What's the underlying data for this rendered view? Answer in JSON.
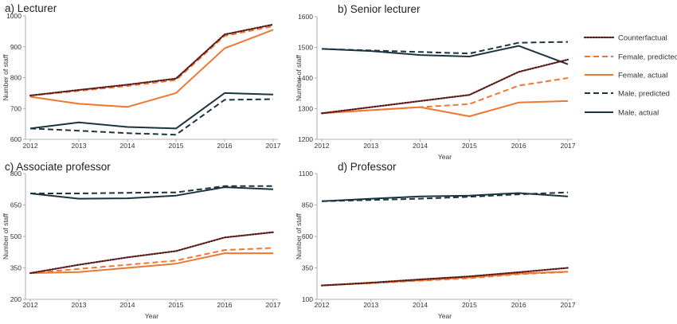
{
  "colors": {
    "counterfactual": "#5a1a1a",
    "female": "#ee7733",
    "male": "#1c3440"
  },
  "legend": [
    {
      "key": "counterfactual",
      "label": "Counterfactual",
      "style": "dotted"
    },
    {
      "key": "female_predicted",
      "label": "Female, predicted",
      "style": "dashed"
    },
    {
      "key": "female_actual",
      "label": "Female, actual",
      "style": "solid"
    },
    {
      "key": "male_predicted",
      "label": "Male, predicted",
      "style": "dashed"
    },
    {
      "key": "male_actual",
      "label": "Male, actual",
      "style": "solid"
    }
  ],
  "chart_data": [
    {
      "type": "line",
      "title": "a) Lecturer",
      "xlabel": "",
      "ylabel": "Number of staff",
      "x": [
        2012,
        2013,
        2014,
        2015,
        2016,
        2017
      ],
      "x_ticks": [
        "2012",
        "2013",
        "2014",
        "2015",
        "2016",
        "2017"
      ],
      "ylim": [
        600,
        1000
      ],
      "y_ticks": [
        "600",
        "700",
        "800",
        "900",
        "1000"
      ],
      "series": [
        {
          "key": "counterfactual",
          "values": [
            742,
            760,
            777,
            797,
            940,
            972
          ]
        },
        {
          "key": "female_predicted",
          "values": [
            742,
            757,
            773,
            792,
            935,
            967
          ]
        },
        {
          "key": "female_actual",
          "values": [
            738,
            715,
            705,
            750,
            895,
            955
          ]
        },
        {
          "key": "male_predicted",
          "values": [
            635,
            628,
            620,
            615,
            728,
            730
          ]
        },
        {
          "key": "male_actual",
          "values": [
            635,
            655,
            640,
            635,
            750,
            745
          ]
        }
      ]
    },
    {
      "type": "line",
      "title": "b) Senior lecturer",
      "xlabel": "Year",
      "ylabel": "Number of staff",
      "x": [
        2012,
        2013,
        2014,
        2015,
        2016,
        2017
      ],
      "x_ticks": [
        "2012",
        "2013",
        "2014",
        "2015",
        "2016",
        "2017"
      ],
      "ylim": [
        1200,
        1600
      ],
      "y_ticks": [
        "1200",
        "1300",
        "1400",
        "1500",
        "1600"
      ],
      "series": [
        {
          "key": "counterfactual",
          "values": [
            1285,
            1305,
            1325,
            1345,
            1420,
            1460
          ]
        },
        {
          "key": "female_predicted",
          "values": [
            1285,
            1295,
            1305,
            1315,
            1375,
            1400
          ]
        },
        {
          "key": "female_actual",
          "values": [
            1285,
            1295,
            1305,
            1275,
            1320,
            1325
          ]
        },
        {
          "key": "male_predicted",
          "values": [
            1495,
            1490,
            1485,
            1480,
            1515,
            1518
          ]
        },
        {
          "key": "male_actual",
          "values": [
            1495,
            1488,
            1475,
            1470,
            1505,
            1445
          ]
        }
      ]
    },
    {
      "type": "line",
      "title": "c) Associate professor",
      "xlabel": "Year",
      "ylabel": "Number of staff",
      "x": [
        2012,
        2013,
        2014,
        2015,
        2016,
        2017
      ],
      "x_ticks": [
        "2012",
        "2013",
        "2014",
        "2015",
        "2016",
        "2017"
      ],
      "ylim": [
        200,
        800
      ],
      "y_ticks": [
        "200",
        "350",
        "500",
        "650",
        "800"
      ],
      "series": [
        {
          "key": "counterfactual",
          "values": [
            325,
            365,
            400,
            430,
            495,
            520
          ]
        },
        {
          "key": "female_predicted",
          "values": [
            325,
            345,
            365,
            385,
            435,
            445
          ]
        },
        {
          "key": "female_actual",
          "values": [
            325,
            330,
            350,
            370,
            420,
            420
          ]
        },
        {
          "key": "male_predicted",
          "values": [
            705,
            705,
            708,
            710,
            740,
            740
          ]
        },
        {
          "key": "male_actual",
          "values": [
            705,
            680,
            682,
            695,
            735,
            725
          ]
        }
      ]
    },
    {
      "type": "line",
      "title": "d) Professor",
      "xlabel": "Year",
      "ylabel": "Number of staff",
      "x": [
        2012,
        2013,
        2014,
        2015,
        2016,
        2017
      ],
      "x_ticks": [
        "2012",
        "2013",
        "2014",
        "2015",
        "2016",
        "2017"
      ],
      "ylim": [
        100,
        1100
      ],
      "y_ticks": [
        "100",
        "350",
        "600",
        "850",
        "1100"
      ],
      "series": [
        {
          "key": "counterfactual",
          "values": [
            210,
            232,
            258,
            282,
            315,
            350
          ]
        },
        {
          "key": "female_predicted",
          "values": [
            210,
            228,
            248,
            268,
            300,
            318
          ]
        },
        {
          "key": "female_actual",
          "values": [
            210,
            230,
            252,
            275,
            305,
            320
          ]
        },
        {
          "key": "male_predicted",
          "values": [
            880,
            890,
            900,
            915,
            935,
            950
          ]
        },
        {
          "key": "male_actual",
          "values": [
            880,
            900,
            918,
            925,
            945,
            918
          ]
        }
      ]
    }
  ]
}
